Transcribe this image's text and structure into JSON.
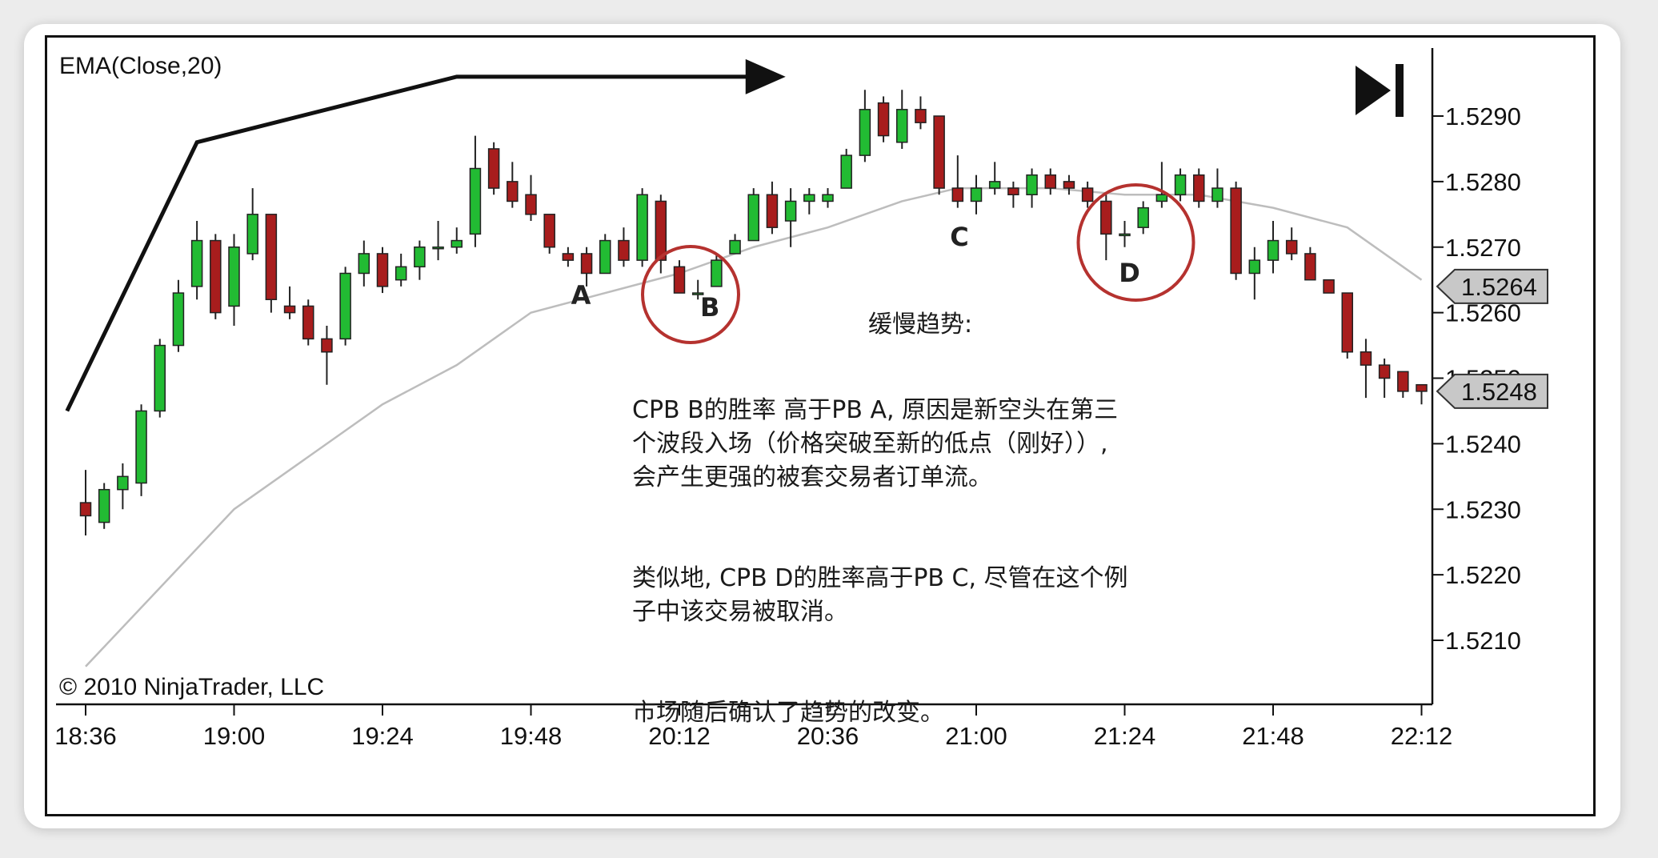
{
  "indicator_label": "EMA(Close,20)",
  "copyright": "© 2010 NinjaTrader, LLC",
  "annotation": {
    "title": "缓慢趋势:",
    "paragraphs": [
      "CPB B的胜率 高于PB A, 原因是新空头在第三\n个波段入场（价格突破至新的低点（刚好））,\n会产生更强的被套交易者订单流。",
      "类似地, CPB D的胜率高于PB C, 尽管在这个例\n子中该交易被取消。",
      "市场随后确认了趋势的改变。"
    ]
  },
  "point_labels": [
    "A",
    "B",
    "C",
    "D"
  ],
  "price_tags": [
    "1.5264",
    "1.5248"
  ],
  "colors": {
    "up": "#22bb33",
    "down": "#a81d1d",
    "ema": "#bdbdbd",
    "circle": "#b5322f",
    "tag_bg": "#c8c8c8"
  },
  "chart_data": {
    "type": "candlestick",
    "x_ticks": [
      "18:36",
      "19:00",
      "19:24",
      "19:48",
      "20:12",
      "20:36",
      "21:00",
      "21:24",
      "21:48",
      "22:12"
    ],
    "y_ticks": [
      "1.5210",
      "1.5220",
      "1.5230",
      "1.5240",
      "1.5250",
      "1.5260",
      "1.5270",
      "1.5280",
      "1.5290"
    ],
    "ylim": [
      1.5199,
      1.5298
    ],
    "bar_interval_minutes": 3,
    "ohlc": [
      {
        "t": "18:36",
        "o": 1.5231,
        "h": 1.5236,
        "l": 1.5226,
        "c": 1.5229
      },
      {
        "t": "18:39",
        "o": 1.5228,
        "h": 1.5234,
        "l": 1.5227,
        "c": 1.5233
      },
      {
        "t": "18:42",
        "o": 1.5233,
        "h": 1.5237,
        "l": 1.523,
        "c": 1.5235
      },
      {
        "t": "18:45",
        "o": 1.5234,
        "h": 1.5246,
        "l": 1.5232,
        "c": 1.5245
      },
      {
        "t": "18:48",
        "o": 1.5245,
        "h": 1.5256,
        "l": 1.5244,
        "c": 1.5255
      },
      {
        "t": "18:51",
        "o": 1.5255,
        "h": 1.5265,
        "l": 1.5254,
        "c": 1.5263
      },
      {
        "t": "18:54",
        "o": 1.5264,
        "h": 1.5274,
        "l": 1.5262,
        "c": 1.5271
      },
      {
        "t": "18:57",
        "o": 1.5271,
        "h": 1.5272,
        "l": 1.5259,
        "c": 1.526
      },
      {
        "t": "19:00",
        "o": 1.5261,
        "h": 1.5272,
        "l": 1.5258,
        "c": 1.527
      },
      {
        "t": "19:03",
        "o": 1.5269,
        "h": 1.5279,
        "l": 1.5268,
        "c": 1.5275
      },
      {
        "t": "19:06",
        "o": 1.5275,
        "h": 1.5275,
        "l": 1.526,
        "c": 1.5262
      },
      {
        "t": "19:09",
        "o": 1.5261,
        "h": 1.5264,
        "l": 1.5259,
        "c": 1.526
      },
      {
        "t": "19:12",
        "o": 1.5261,
        "h": 1.5262,
        "l": 1.5255,
        "c": 1.5256
      },
      {
        "t": "19:15",
        "o": 1.5256,
        "h": 1.5258,
        "l": 1.5249,
        "c": 1.5254
      },
      {
        "t": "19:18",
        "o": 1.5256,
        "h": 1.5267,
        "l": 1.5255,
        "c": 1.5266
      },
      {
        "t": "19:21",
        "o": 1.5266,
        "h": 1.5271,
        "l": 1.5264,
        "c": 1.5269
      },
      {
        "t": "19:24",
        "o": 1.5269,
        "h": 1.527,
        "l": 1.5263,
        "c": 1.5264
      },
      {
        "t": "19:27",
        "o": 1.5265,
        "h": 1.5269,
        "l": 1.5264,
        "c": 1.5267
      },
      {
        "t": "19:30",
        "o": 1.5267,
        "h": 1.5271,
        "l": 1.5265,
        "c": 1.527
      },
      {
        "t": "19:33",
        "o": 1.527,
        "h": 1.5274,
        "l": 1.5268,
        "c": 1.527
      },
      {
        "t": "19:36",
        "o": 1.527,
        "h": 1.5273,
        "l": 1.5269,
        "c": 1.5271
      },
      {
        "t": "19:39",
        "o": 1.5272,
        "h": 1.5287,
        "l": 1.527,
        "c": 1.5282
      },
      {
        "t": "19:42",
        "o": 1.5285,
        "h": 1.5286,
        "l": 1.5278,
        "c": 1.5279
      },
      {
        "t": "19:45",
        "o": 1.528,
        "h": 1.5283,
        "l": 1.5276,
        "c": 1.5277
      },
      {
        "t": "19:48",
        "o": 1.5278,
        "h": 1.5281,
        "l": 1.5274,
        "c": 1.5275
      },
      {
        "t": "19:51",
        "o": 1.5275,
        "h": 1.5275,
        "l": 1.5269,
        "c": 1.527
      },
      {
        "t": "19:54",
        "o": 1.5269,
        "h": 1.527,
        "l": 1.5267,
        "c": 1.5268
      },
      {
        "t": "19:57",
        "o": 1.5269,
        "h": 1.527,
        "l": 1.5264,
        "c": 1.5266
      },
      {
        "t": "20:00",
        "o": 1.5266,
        "h": 1.5272,
        "l": 1.5266,
        "c": 1.5271
      },
      {
        "t": "20:03",
        "o": 1.5271,
        "h": 1.5273,
        "l": 1.5267,
        "c": 1.5268
      },
      {
        "t": "20:06",
        "o": 1.5268,
        "h": 1.5279,
        "l": 1.5267,
        "c": 1.5278
      },
      {
        "t": "20:09",
        "o": 1.5277,
        "h": 1.5278,
        "l": 1.5266,
        "c": 1.5268
      },
      {
        "t": "20:12",
        "o": 1.5267,
        "h": 1.5268,
        "l": 1.5263,
        "c": 1.5263
      },
      {
        "t": "20:15",
        "o": 1.5263,
        "h": 1.5265,
        "l": 1.5262,
        "c": 1.5263
      },
      {
        "t": "20:18",
        "o": 1.5264,
        "h": 1.5269,
        "l": 1.5264,
        "c": 1.5268
      },
      {
        "t": "20:21",
        "o": 1.5269,
        "h": 1.5272,
        "l": 1.5269,
        "c": 1.5271
      },
      {
        "t": "20:24",
        "o": 1.5271,
        "h": 1.5279,
        "l": 1.5271,
        "c": 1.5278
      },
      {
        "t": "20:27",
        "o": 1.5278,
        "h": 1.528,
        "l": 1.5272,
        "c": 1.5273
      },
      {
        "t": "20:30",
        "o": 1.5274,
        "h": 1.5279,
        "l": 1.527,
        "c": 1.5277
      },
      {
        "t": "20:33",
        "o": 1.5277,
        "h": 1.5279,
        "l": 1.5275,
        "c": 1.5278
      },
      {
        "t": "20:36",
        "o": 1.5277,
        "h": 1.5279,
        "l": 1.5276,
        "c": 1.5278
      },
      {
        "t": "20:39",
        "o": 1.5279,
        "h": 1.5285,
        "l": 1.5279,
        "c": 1.5284
      },
      {
        "t": "20:42",
        "o": 1.5284,
        "h": 1.5294,
        "l": 1.5283,
        "c": 1.5291
      },
      {
        "t": "20:45",
        "o": 1.5292,
        "h": 1.5293,
        "l": 1.5286,
        "c": 1.5287
      },
      {
        "t": "20:48",
        "o": 1.5286,
        "h": 1.5294,
        "l": 1.5285,
        "c": 1.5291
      },
      {
        "t": "20:51",
        "o": 1.5291,
        "h": 1.5293,
        "l": 1.5288,
        "c": 1.5289
      },
      {
        "t": "20:54",
        "o": 1.529,
        "h": 1.529,
        "l": 1.5278,
        "c": 1.5279
      },
      {
        "t": "20:57",
        "o": 1.5279,
        "h": 1.5284,
        "l": 1.5276,
        "c": 1.5277
      },
      {
        "t": "21:00",
        "o": 1.5277,
        "h": 1.5281,
        "l": 1.5275,
        "c": 1.5279
      },
      {
        "t": "21:03",
        "o": 1.5279,
        "h": 1.5283,
        "l": 1.5278,
        "c": 1.528
      },
      {
        "t": "21:06",
        "o": 1.5279,
        "h": 1.528,
        "l": 1.5276,
        "c": 1.5278
      },
      {
        "t": "21:09",
        "o": 1.5278,
        "h": 1.5282,
        "l": 1.5276,
        "c": 1.5281
      },
      {
        "t": "21:12",
        "o": 1.5281,
        "h": 1.5282,
        "l": 1.5278,
        "c": 1.5279
      },
      {
        "t": "21:15",
        "o": 1.528,
        "h": 1.5281,
        "l": 1.5278,
        "c": 1.5279
      },
      {
        "t": "21:18",
        "o": 1.5279,
        "h": 1.528,
        "l": 1.5276,
        "c": 1.5277
      },
      {
        "t": "21:21",
        "o": 1.5277,
        "h": 1.5278,
        "l": 1.5268,
        "c": 1.5272
      },
      {
        "t": "21:24",
        "o": 1.5272,
        "h": 1.5274,
        "l": 1.527,
        "c": 1.5272
      },
      {
        "t": "21:27",
        "o": 1.5273,
        "h": 1.5277,
        "l": 1.5272,
        "c": 1.5276
      },
      {
        "t": "21:30",
        "o": 1.5277,
        "h": 1.5283,
        "l": 1.5276,
        "c": 1.5278
      },
      {
        "t": "21:33",
        "o": 1.5278,
        "h": 1.5282,
        "l": 1.5277,
        "c": 1.5281
      },
      {
        "t": "21:36",
        "o": 1.5281,
        "h": 1.5282,
        "l": 1.5276,
        "c": 1.5277
      },
      {
        "t": "21:39",
        "o": 1.5277,
        "h": 1.5282,
        "l": 1.5276,
        "c": 1.5279
      },
      {
        "t": "21:42",
        "o": 1.5279,
        "h": 1.528,
        "l": 1.5265,
        "c": 1.5266
      },
      {
        "t": "21:45",
        "o": 1.5266,
        "h": 1.527,
        "l": 1.5262,
        "c": 1.5268
      },
      {
        "t": "21:48",
        "o": 1.5268,
        "h": 1.5274,
        "l": 1.5266,
        "c": 1.5271
      },
      {
        "t": "21:51",
        "o": 1.5271,
        "h": 1.5273,
        "l": 1.5268,
        "c": 1.5269
      },
      {
        "t": "21:54",
        "o": 1.5269,
        "h": 1.527,
        "l": 1.5265,
        "c": 1.5265
      },
      {
        "t": "21:57",
        "o": 1.5265,
        "h": 1.5265,
        "l": 1.5263,
        "c": 1.5263
      },
      {
        "t": "22:00",
        "o": 1.5263,
        "h": 1.5263,
        "l": 1.5253,
        "c": 1.5254
      },
      {
        "t": "22:03",
        "o": 1.5254,
        "h": 1.5256,
        "l": 1.5247,
        "c": 1.5252
      },
      {
        "t": "22:06",
        "o": 1.5252,
        "h": 1.5253,
        "l": 1.5247,
        "c": 1.525
      },
      {
        "t": "22:09",
        "o": 1.5251,
        "h": 1.5251,
        "l": 1.5247,
        "c": 1.5248
      },
      {
        "t": "22:12",
        "o": 1.5249,
        "h": 1.5249,
        "l": 1.5246,
        "c": 1.5248
      }
    ],
    "ema": [
      {
        "t": "18:36",
        "v": 1.5206
      },
      {
        "t": "18:48",
        "v": 1.5218
      },
      {
        "t": "19:00",
        "v": 1.523
      },
      {
        "t": "19:12",
        "v": 1.5238
      },
      {
        "t": "19:24",
        "v": 1.5246
      },
      {
        "t": "19:36",
        "v": 1.5252
      },
      {
        "t": "19:48",
        "v": 1.526
      },
      {
        "t": "20:00",
        "v": 1.5263
      },
      {
        "t": "20:12",
        "v": 1.5266
      },
      {
        "t": "20:24",
        "v": 1.527
      },
      {
        "t": "20:36",
        "v": 1.5273
      },
      {
        "t": "20:48",
        "v": 1.5277
      },
      {
        "t": "20:57",
        "v": 1.5279
      },
      {
        "t": "21:12",
        "v": 1.5279
      },
      {
        "t": "21:24",
        "v": 1.5278
      },
      {
        "t": "21:36",
        "v": 1.5278
      },
      {
        "t": "21:48",
        "v": 1.5276
      },
      {
        "t": "22:00",
        "v": 1.5273
      },
      {
        "t": "22:12",
        "v": 1.5265
      }
    ],
    "markers": [
      {
        "label": "A",
        "t": "19:57"
      },
      {
        "label": "B",
        "t": "20:15"
      },
      {
        "label": "C",
        "t": "21:00"
      },
      {
        "label": "D",
        "t": "21:24"
      }
    ],
    "circles": [
      "20:12",
      "21:24"
    ],
    "trend_line": [
      {
        "t": "18:33",
        "v": 1.5245
      },
      {
        "t": "18:54",
        "v": 1.5286
      },
      {
        "t": "19:36",
        "v": 1.5296
      },
      {
        "t": "20:24",
        "v": 1.5296
      }
    ]
  }
}
